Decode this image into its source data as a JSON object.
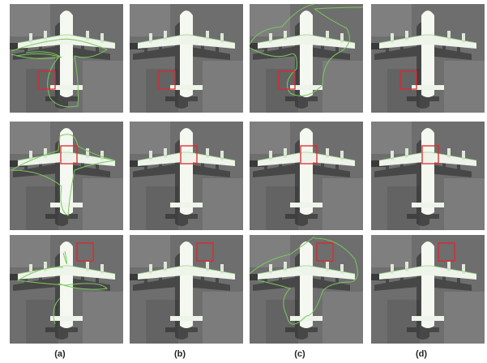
{
  "labels": [
    "(a)",
    "(b)",
    "(c)",
    "(d)"
  ]
}
